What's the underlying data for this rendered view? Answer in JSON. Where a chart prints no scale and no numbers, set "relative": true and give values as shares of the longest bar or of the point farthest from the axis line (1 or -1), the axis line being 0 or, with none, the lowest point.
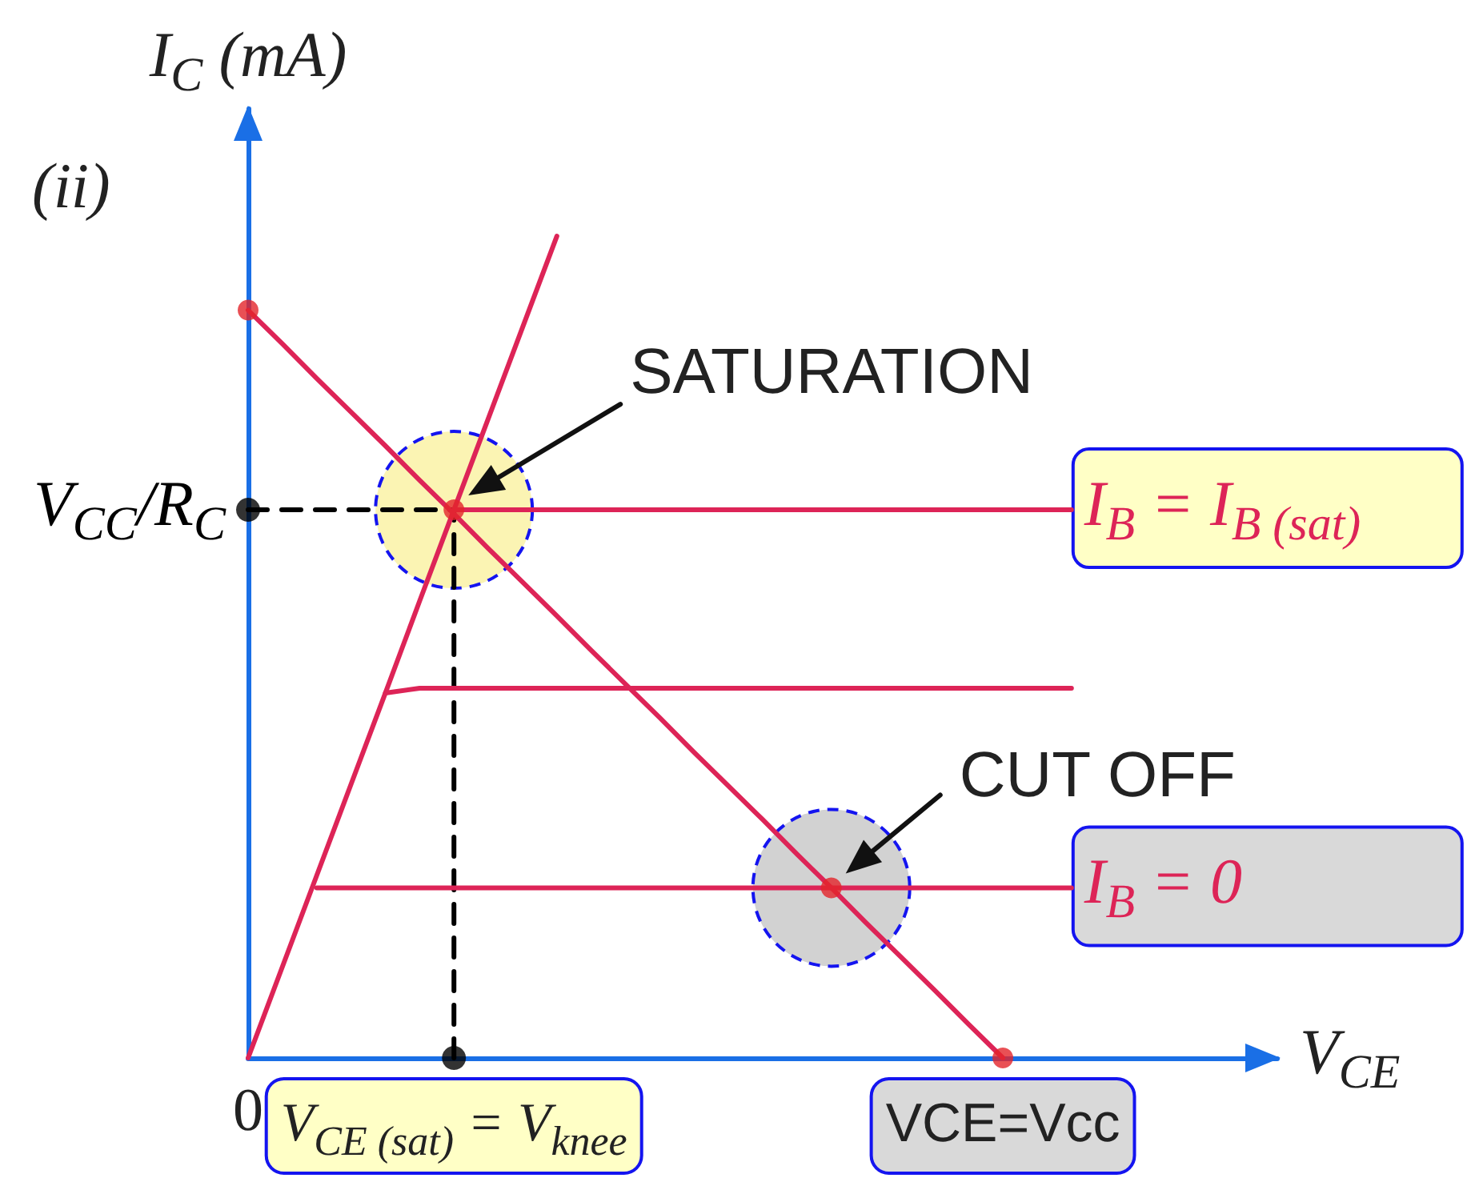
{
  "chart_data": {
    "type": "line",
    "relative": true,
    "xlabel": "V$_{CE}$",
    "ylabel": "I$_{C}$ (mA)",
    "categories": [
      "0",
      null,
      null,
      null,
      null,
      null,
      "V$_{CE (sat)}$ = V$_{knee}$",
      null,
      null,
      null,
      null,
      null,
      null,
      null,
      null,
      null,
      null,
      null,
      null,
      null,
      null,
      null,
      "VCE=Vcc",
      null,
      null,
      null,
      null,
      null,
      null,
      null,
      null
    ],
    "series": [
      {
        "color": "#dd2457",
        "values": [
          0,
          0.111,
          0.222,
          0.333,
          0.444,
          0.556,
          0.667,
          0.778,
          0.889,
          1,
          null,
          null,
          null,
          null,
          null,
          null,
          null,
          null,
          null,
          null,
          null,
          null,
          null,
          null,
          null,
          null,
          null,
          null,
          null,
          null,
          null
        ]
      },
      {
        "name": "I$_{B}$ = I$_{B (sat)}$",
        "color": "#dd2457",
        "values": [
          null,
          null,
          null,
          null,
          null,
          null,
          0.667,
          0.667,
          0.667,
          0.667,
          0.667,
          0.667,
          0.667,
          0.667,
          0.667,
          0.667,
          0.667,
          0.667,
          0.667,
          0.667,
          0.667,
          0.667,
          0.667,
          0.667,
          0.667,
          null,
          null,
          null,
          null,
          null,
          null
        ]
      },
      {
        "color": "#dd2457",
        "values": [
          null,
          null,
          null,
          null,
          0.444,
          0.45,
          0.45,
          0.45,
          0.45,
          0.45,
          0.45,
          0.45,
          0.45,
          0.45,
          0.45,
          0.45,
          0.45,
          0.45,
          0.45,
          0.45,
          0.45,
          0.45,
          0.45,
          0.45,
          0.45,
          null,
          null,
          null,
          null,
          null,
          null
        ]
      },
      {
        "name": "I$_{B}$ = 0",
        "color": "#dd2457",
        "values": [
          null,
          null,
          0.207,
          0.207,
          0.207,
          0.207,
          0.207,
          0.207,
          0.207,
          0.207,
          0.207,
          0.207,
          0.207,
          0.207,
          0.207,
          0.207,
          0.207,
          0.207,
          0.207,
          0.207,
          0.207,
          0.207,
          0.207,
          0.207,
          0.207,
          null,
          null,
          null,
          null,
          null,
          null
        ]
      },
      {
        "color": "#dd2457",
        "values": [
          0.91,
          0.869,
          0.827,
          0.786,
          0.745,
          0.703,
          0.662,
          0.62,
          0.579,
          0.538,
          0.496,
          0.455,
          0.414,
          0.372,
          0.331,
          0.29,
          0.248,
          0.207,
          0.165,
          0.124,
          0.083,
          0.041,
          0,
          null,
          null,
          null,
          null,
          null,
          null,
          null,
          null
        ]
      },
      {
        "name": "V$_{CC}$/R$_{C}$",
        "color": "#000000",
        "line_style": "dashed",
        "values": [
          0.667,
          0.667,
          0.667,
          0.667,
          0.667,
          0.667,
          0.667,
          null,
          null,
          null,
          null,
          null,
          null,
          null,
          null,
          null,
          null,
          null,
          null,
          null,
          null,
          null,
          null,
          null,
          null,
          null,
          null,
          null,
          null,
          null,
          null
        ]
      },
      {
        "color": "#000000",
        "line_style": "dashed",
        "x": [
          "V$_{CE (sat)}$ = V$_{knee}$",
          "V$_{CE (sat)}$ = V$_{knee}$"
        ],
        "values": [
          0,
          0.667
        ]
      },
      {
        "type": "scatter",
        "color": "#e3242b",
        "marker": "circle",
        "values": [
          0.91,
          null,
          null,
          null,
          null,
          null,
          0.667,
          null,
          null,
          null,
          null,
          null,
          null,
          null,
          null,
          null,
          null,
          0.207,
          null,
          null,
          null,
          null,
          0,
          null,
          null,
          null,
          null,
          null,
          null,
          null,
          null
        ]
      },
      {
        "type": "scatter",
        "color": "#000000",
        "marker": "circle",
        "values": [
          0.667,
          null,
          null,
          null,
          null,
          null,
          0,
          null,
          null,
          null,
          null,
          null,
          null,
          null,
          null,
          null,
          null,
          null,
          null,
          null,
          null,
          null,
          null,
          null,
          null,
          null,
          null,
          null,
          null,
          null,
          null
        ]
      }
    ],
    "annotations": [
      "(ii)",
      "SATURATION",
      "CUT OFF"
    ]
  }
}
